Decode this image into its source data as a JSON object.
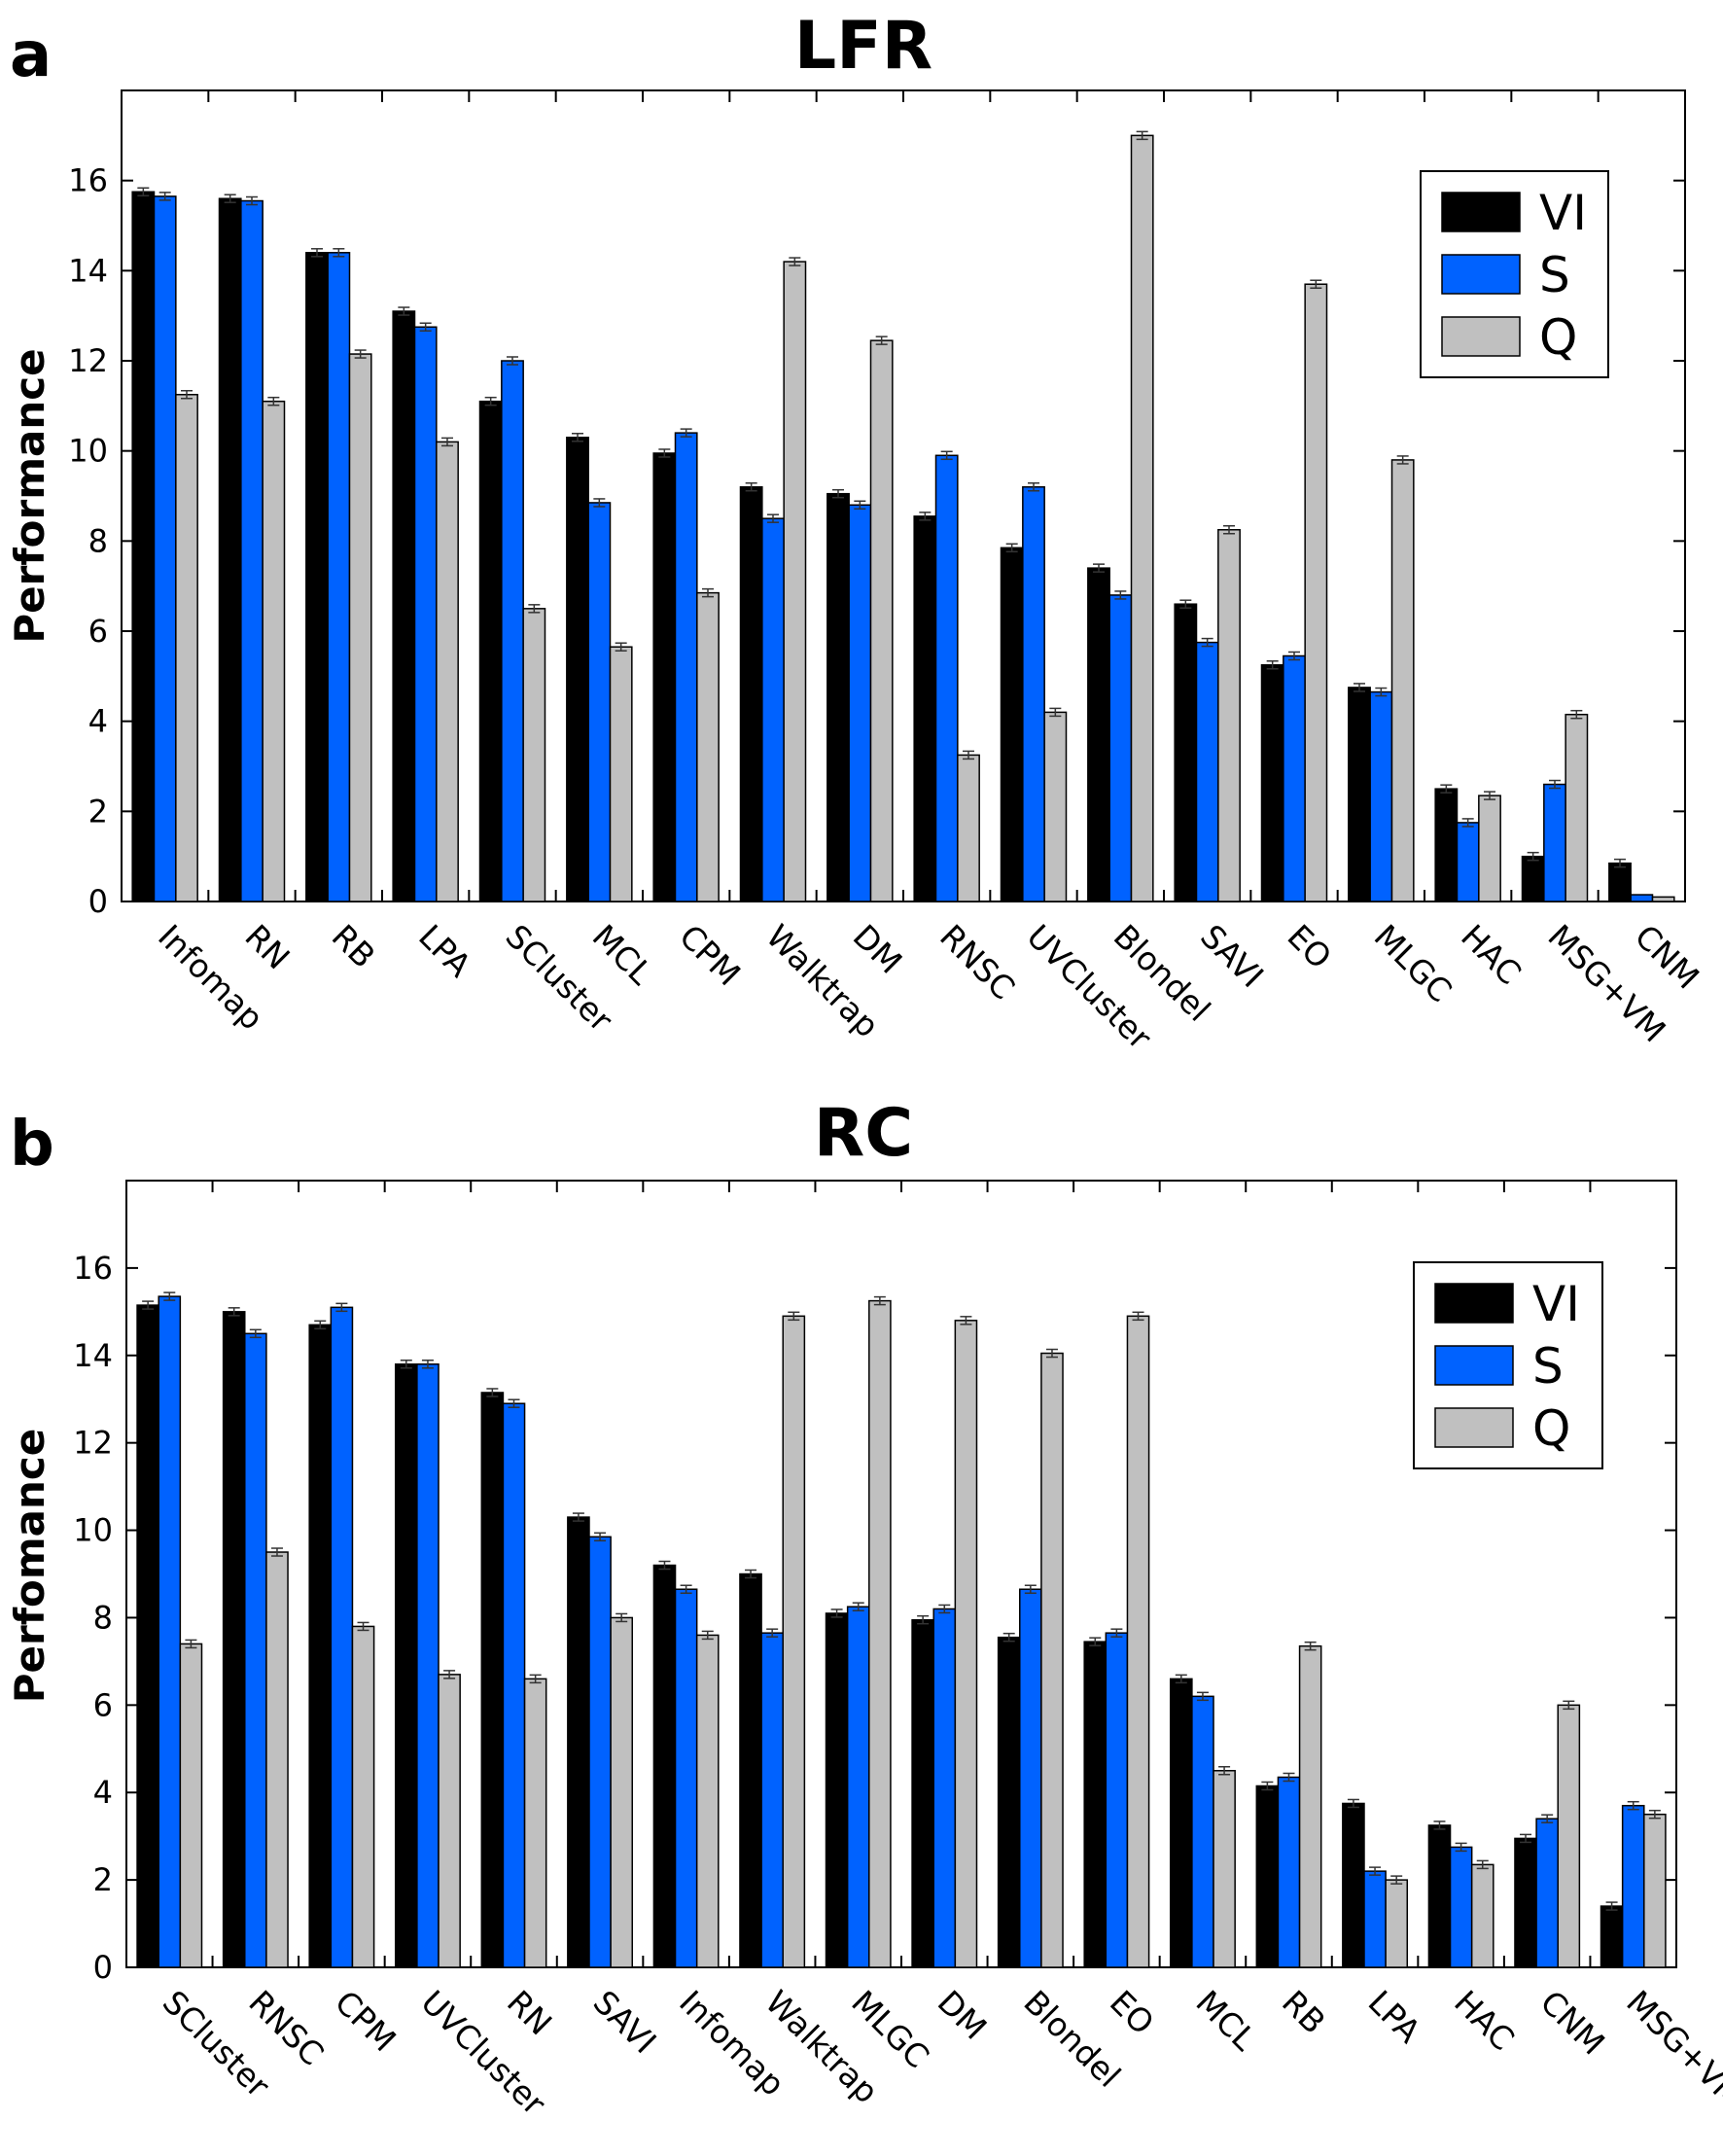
{
  "panels": [
    {
      "letter": "a"
    },
    {
      "letter": "b"
    }
  ],
  "colors": {
    "VI": "#000000",
    "S": "#0062ff",
    "Q": "#c0c0c0"
  },
  "chart_data": [
    {
      "type": "bar",
      "title": "LFR",
      "xlabel": "",
      "ylabel": "Performance",
      "ylim": [
        0,
        18
      ],
      "yticks": [
        0,
        2,
        4,
        6,
        8,
        10,
        12,
        14,
        16
      ],
      "legend": "top-right",
      "categories": [
        "Infomap",
        "RN",
        "RB",
        "LPA",
        "SCluster",
        "MCL",
        "CPM",
        "Walktrap",
        "DM",
        "RNSC",
        "UVCluster",
        "Blondel",
        "SAVI",
        "EO",
        "MLGC",
        "HAC",
        "MSG+VM",
        "CNM"
      ],
      "series": [
        {
          "name": "VI",
          "values": [
            15.75,
            15.6,
            14.4,
            13.1,
            11.1,
            10.3,
            9.95,
            9.2,
            9.05,
            8.55,
            7.85,
            7.4,
            6.6,
            5.25,
            4.75,
            2.5,
            1.0,
            0.85
          ]
        },
        {
          "name": "S",
          "values": [
            15.65,
            15.55,
            14.4,
            12.75,
            12.0,
            8.85,
            10.4,
            8.5,
            8.8,
            9.9,
            9.2,
            6.8,
            5.75,
            5.45,
            4.65,
            1.75,
            2.6,
            0.15
          ]
        },
        {
          "name": "Q",
          "values": [
            11.25,
            11.1,
            12.15,
            10.2,
            6.5,
            5.65,
            6.85,
            14.2,
            12.45,
            3.25,
            4.2,
            17.0,
            8.25,
            13.7,
            9.8,
            2.35,
            4.15,
            0.1
          ]
        }
      ]
    },
    {
      "type": "bar",
      "title": "RC",
      "xlabel": "",
      "ylabel": "Perfomance",
      "ylim": [
        0,
        18
      ],
      "yticks": [
        0,
        2,
        4,
        6,
        8,
        10,
        12,
        14,
        16
      ],
      "legend": "top-right",
      "categories": [
        "SCluster",
        "RNSC",
        "CPM",
        "UVCluster",
        "RN",
        "SAVI",
        "Infomap",
        "Walktrap",
        "MLGC",
        "DM",
        "Blondel",
        "EO",
        "MCL",
        "RB",
        "LPA",
        "HAC",
        "CNM",
        "MSG+VM"
      ],
      "series": [
        {
          "name": "VI",
          "values": [
            15.15,
            15.0,
            14.7,
            13.8,
            13.15,
            10.3,
            9.2,
            9.0,
            8.1,
            7.95,
            7.55,
            7.45,
            6.6,
            4.15,
            3.75,
            3.25,
            2.95,
            1.4
          ]
        },
        {
          "name": "S",
          "values": [
            15.35,
            14.5,
            15.1,
            13.8,
            12.9,
            9.85,
            8.65,
            7.65,
            8.25,
            8.2,
            8.65,
            7.65,
            6.2,
            4.35,
            2.2,
            2.75,
            3.4,
            3.7
          ]
        },
        {
          "name": "Q",
          "values": [
            7.4,
            9.5,
            7.8,
            6.7,
            6.6,
            8.0,
            7.6,
            14.9,
            15.25,
            14.8,
            14.05,
            14.9,
            4.5,
            7.35,
            2.0,
            2.35,
            6.0,
            3.5
          ]
        }
      ]
    }
  ]
}
